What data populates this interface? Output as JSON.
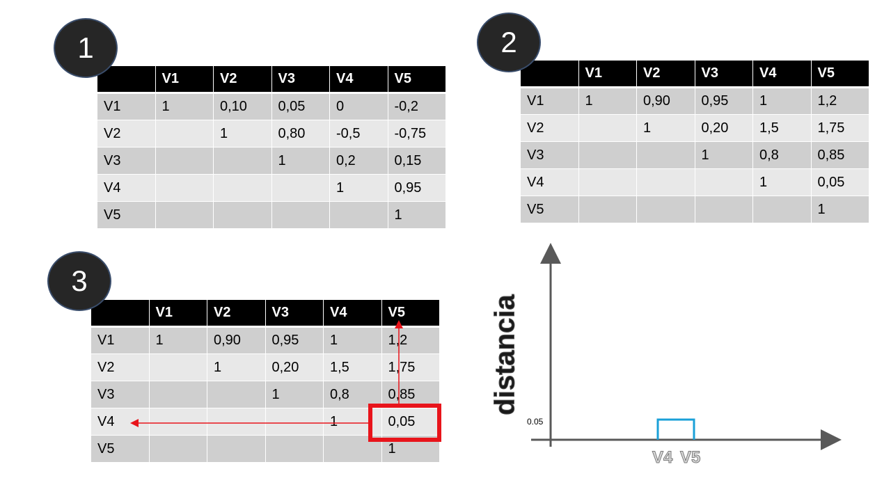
{
  "panels": {
    "p1": {
      "badge": "1",
      "columns": [
        "",
        "V1",
        "V2",
        "V3",
        "V4",
        "V5"
      ],
      "rows": [
        [
          "V1",
          "1",
          "0,10",
          "0,05",
          "0",
          "-0,2"
        ],
        [
          "V2",
          "",
          "1",
          "0,80",
          "-0,5",
          "-0,75"
        ],
        [
          "V3",
          "",
          "",
          "1",
          "0,2",
          "0,15"
        ],
        [
          "V4",
          "",
          "",
          "",
          "1",
          "0,95"
        ],
        [
          "V5",
          "",
          "",
          "",
          "",
          "1"
        ]
      ]
    },
    "p2": {
      "badge": "2",
      "columns": [
        "",
        "V1",
        "V2",
        "V3",
        "V4",
        "V5"
      ],
      "rows": [
        [
          "V1",
          "1",
          "0,90",
          "0,95",
          "1",
          "1,2"
        ],
        [
          "V2",
          "",
          "1",
          "0,20",
          "1,5",
          "1,75"
        ],
        [
          "V3",
          "",
          "",
          "1",
          "0,8",
          "0,85"
        ],
        [
          "V4",
          "",
          "",
          "",
          "1",
          "0,05"
        ],
        [
          "V5",
          "",
          "",
          "",
          "",
          "1"
        ]
      ]
    },
    "p3": {
      "badge": "3",
      "columns": [
        "",
        "V1",
        "V2",
        "V3",
        "V4",
        "V5"
      ],
      "rows": [
        [
          "V1",
          "1",
          "0,90",
          "0,95",
          "1",
          "1,2"
        ],
        [
          "V2",
          "",
          "1",
          "0,20",
          "1,5",
          "1,75"
        ],
        [
          "V3",
          "",
          "",
          "1",
          "0,8",
          "0,85"
        ],
        [
          "V4",
          "",
          "",
          "",
          "1",
          "0,05"
        ],
        [
          "V5",
          "",
          "",
          "",
          "",
          "1"
        ]
      ],
      "highlight": {
        "row": "V4",
        "column": "V5",
        "color": "#e8141b"
      }
    }
  },
  "dendrogram": {
    "ylabel": "distancia",
    "ytick": "0.05",
    "leaves": [
      "V4",
      "V5"
    ],
    "merge_height": 0.05,
    "link_color": "#1aa0d8",
    "axis_color": "#595959"
  }
}
